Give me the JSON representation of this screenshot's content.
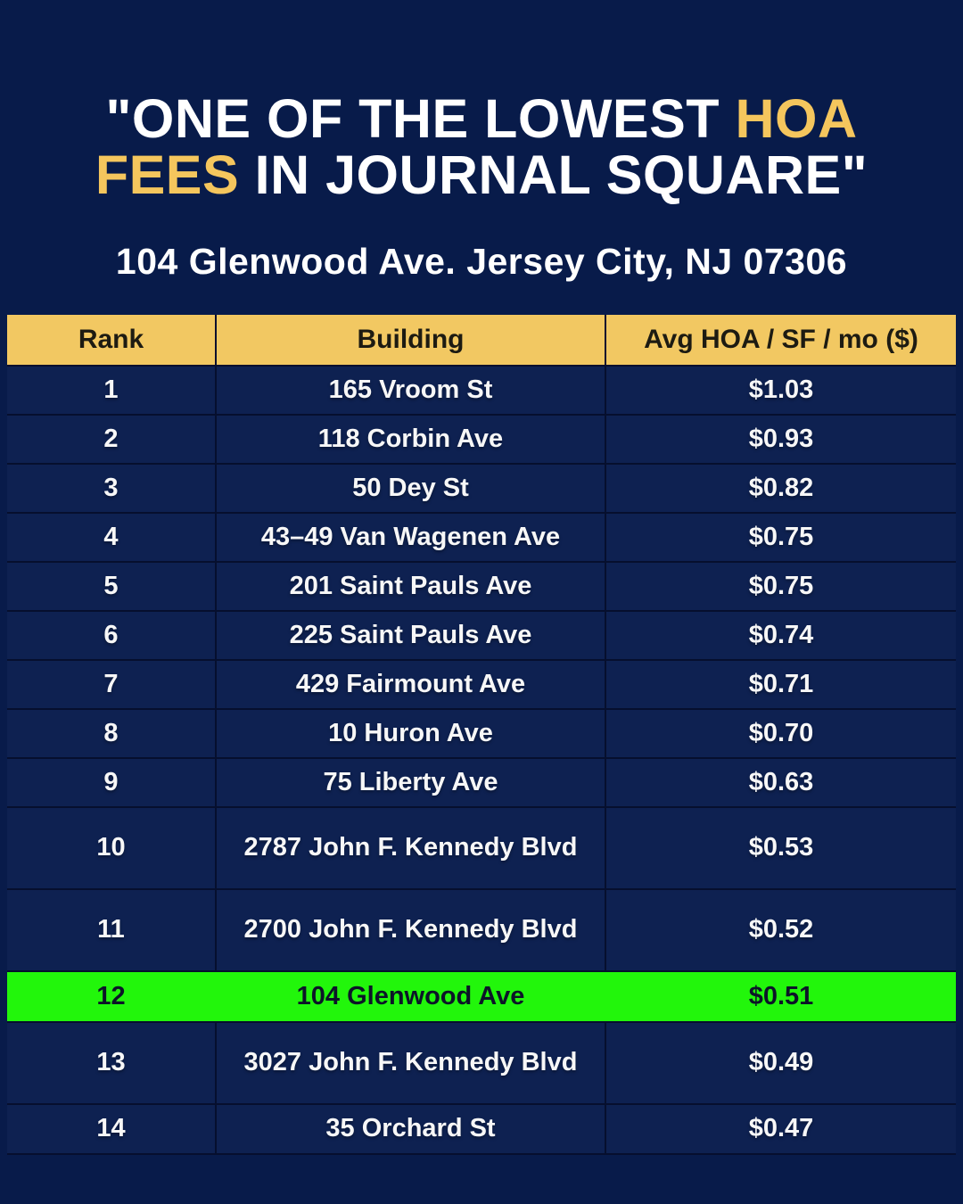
{
  "colors": {
    "background": "#081b4a",
    "row_bg": "#0e2151",
    "border": "#060f2e",
    "header_bg": "#f2c862",
    "header_text": "#1d1b12",
    "row_text": "#f7f7f7",
    "accent_gold": "#f5c65d",
    "highlight_green": "#22f60b",
    "highlight_text": "#0c1528"
  },
  "header": {
    "title": {
      "l1_text": "\"ONE OF THE LOWEST ",
      "l1_accent": "HOA",
      "l2_accent": "FEES",
      "l2_text": " IN JOURNAL SQUARE\""
    },
    "subtitle": "104 Glenwood Ave. Jersey City, NJ 07306"
  },
  "table": {
    "columns": [
      "Rank",
      "Building",
      "Avg HOA / SF / mo ($)"
    ],
    "rows": [
      {
        "rank": "1",
        "building": "165 Vroom St",
        "value": "$1.03",
        "tall": false,
        "highlight": false
      },
      {
        "rank": "2",
        "building": "118 Corbin Ave",
        "value": "$0.93",
        "tall": false,
        "highlight": false
      },
      {
        "rank": "3",
        "building": "50 Dey St",
        "value": "$0.82",
        "tall": false,
        "highlight": false
      },
      {
        "rank": "4",
        "building": "43–49 Van Wagenen Ave",
        "value": "$0.75",
        "tall": false,
        "highlight": false
      },
      {
        "rank": "5",
        "building": "201 Saint Pauls Ave",
        "value": "$0.75",
        "tall": false,
        "highlight": false
      },
      {
        "rank": "6",
        "building": "225 Saint Pauls Ave",
        "value": "$0.74",
        "tall": false,
        "highlight": false
      },
      {
        "rank": "7",
        "building": "429 Fairmount Ave",
        "value": "$0.71",
        "tall": false,
        "highlight": false
      },
      {
        "rank": "8",
        "building": "10 Huron Ave",
        "value": "$0.70",
        "tall": false,
        "highlight": false
      },
      {
        "rank": "9",
        "building": "75 Liberty Ave",
        "value": "$0.63",
        "tall": false,
        "highlight": false
      },
      {
        "rank": "10",
        "building": "2787 John F. Kennedy Blvd",
        "value": "$0.53",
        "tall": true,
        "highlight": false
      },
      {
        "rank": "11",
        "building": "2700 John F. Kennedy Blvd",
        "value": "$0.52",
        "tall": true,
        "highlight": false
      },
      {
        "rank": "12",
        "building": "104 Glenwood Ave",
        "value": "$0.51",
        "tall": false,
        "highlight": true
      },
      {
        "rank": "13",
        "building": "3027 John F. Kennedy Blvd",
        "value": "$0.49",
        "tall": true,
        "highlight": false
      },
      {
        "rank": "14",
        "building": "35 Orchard St",
        "value": "$0.47",
        "tall": false,
        "highlight": false
      }
    ]
  },
  "chart_data": {
    "type": "table",
    "title": "\"ONE OF THE LOWEST HOA FEES IN JOURNAL SQUARE\"",
    "subtitle": "104 Glenwood Ave. Jersey City, NJ 07306",
    "columns": [
      "Rank",
      "Building",
      "Avg HOA / SF / mo ($)"
    ],
    "categories": [
      "165 Vroom St",
      "118 Corbin Ave",
      "50 Dey St",
      "43–49 Van Wagenen Ave",
      "201 Saint Pauls Ave",
      "225 Saint Pauls Ave",
      "429 Fairmount Ave",
      "10 Huron Ave",
      "75 Liberty Ave",
      "2787 John F. Kennedy Blvd",
      "2700 John F. Kennedy Blvd",
      "104 Glenwood Ave",
      "3027 John F. Kennedy Blvd",
      "35 Orchard St"
    ],
    "values": [
      1.03,
      0.93,
      0.82,
      0.75,
      0.75,
      0.74,
      0.71,
      0.7,
      0.63,
      0.53,
      0.52,
      0.51,
      0.49,
      0.47
    ],
    "highlighted_row": "104 Glenwood Ave"
  }
}
